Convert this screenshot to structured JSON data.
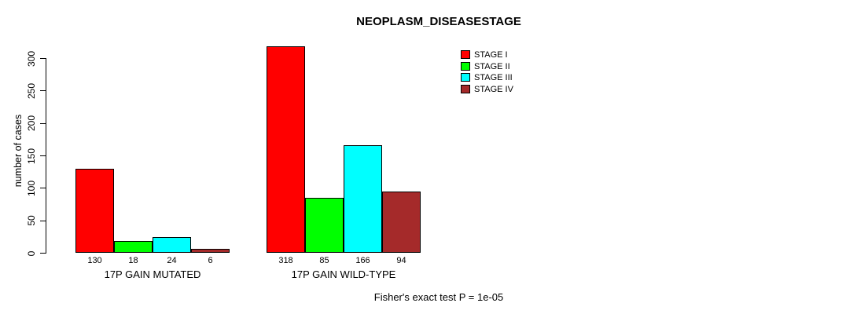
{
  "chart_data": {
    "type": "bar",
    "title": "NEOPLASM_DISEASESTAGE",
    "xlabel": "",
    "ylabel": "number of cases",
    "categories": [
      "17P GAIN MUTATED",
      "17P GAIN WILD-TYPE"
    ],
    "series": [
      {
        "name": "STAGE I",
        "color": "#FF0000",
        "values": [
          130,
          318
        ]
      },
      {
        "name": "STAGE II",
        "color": "#00FF00",
        "values": [
          18,
          85
        ]
      },
      {
        "name": "STAGE III",
        "color": "#00FFFF",
        "values": [
          24,
          166
        ]
      },
      {
        "name": "STAGE IV",
        "color": "#A52A2A",
        "values": [
          6,
          94
        ]
      }
    ],
    "bar_value_labels": [
      [
        130,
        18,
        24,
        6
      ],
      [
        318,
        85,
        166,
        94
      ]
    ],
    "yticks": [
      0,
      50,
      100,
      150,
      200,
      250,
      300
    ],
    "ylim": [
      0,
      300
    ],
    "grid": false,
    "legend_position": "top-right",
    "legend_entries": [
      "STAGE I",
      "STAGE II",
      "STAGE III",
      "STAGE IV"
    ],
    "annotation": "Fisher's exact test P = 1e-05",
    "axis_color": "#000000",
    "text_color": "#000000",
    "background_color": "#FFFFFF"
  }
}
